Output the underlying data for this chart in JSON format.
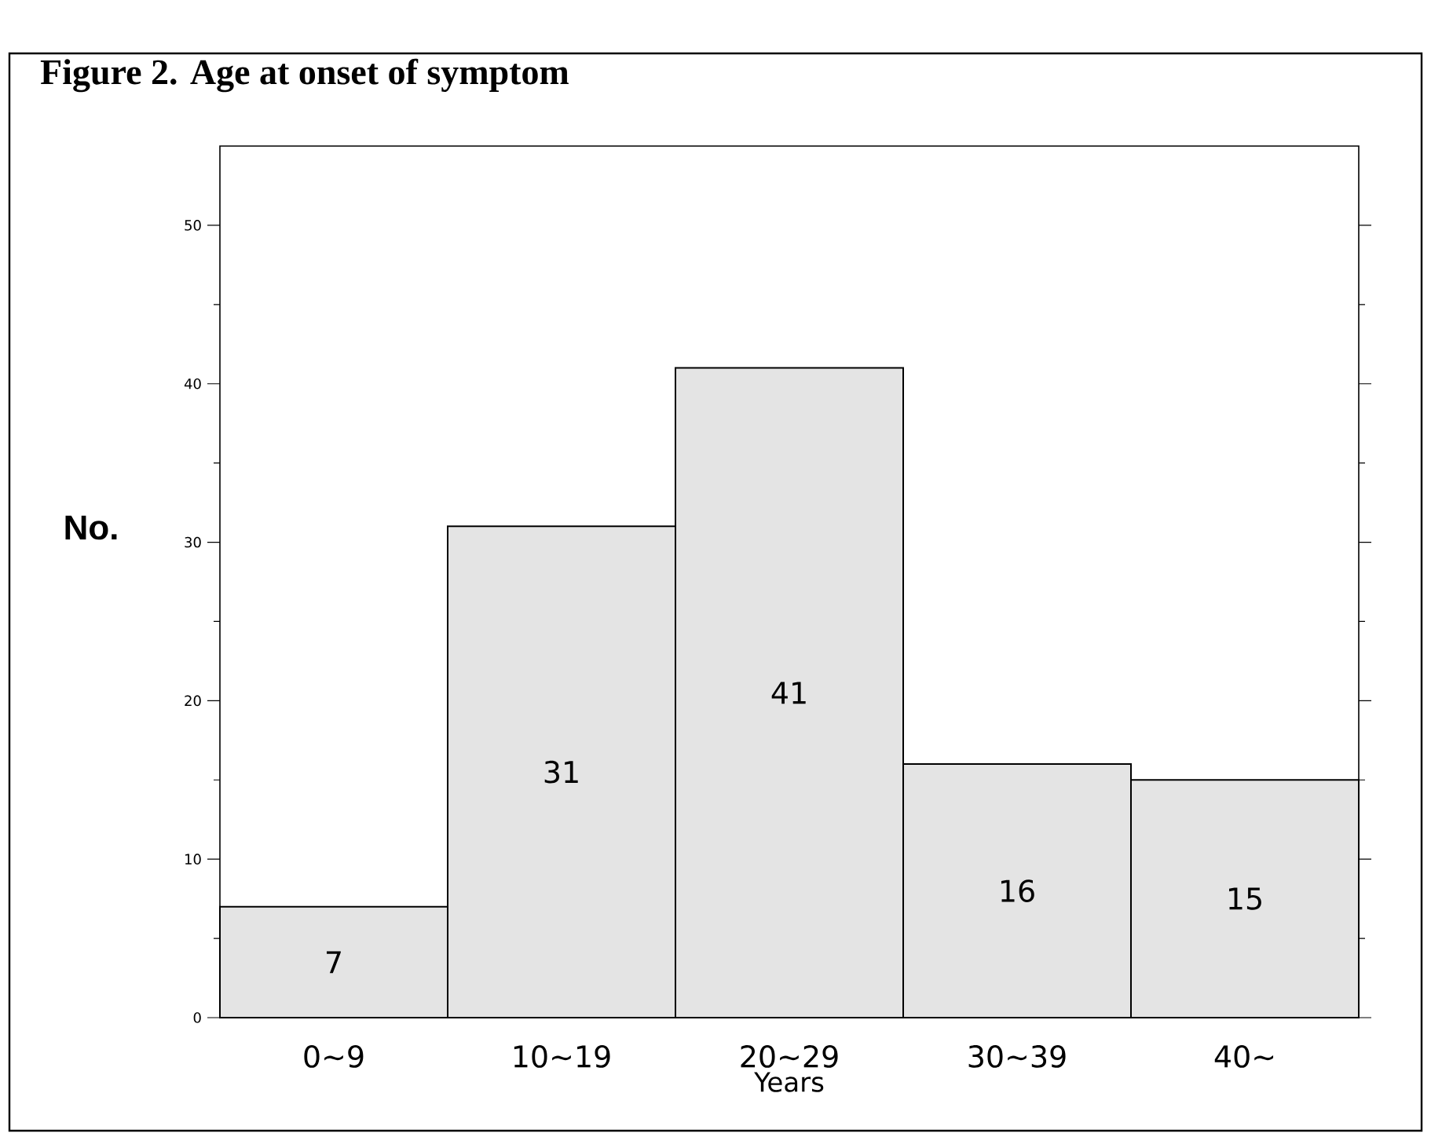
{
  "chart_data": {
    "type": "bar",
    "title": "Figure 2.    Age at onset of symptom",
    "xlabel": "Years",
    "ylabel": "No.",
    "categories": [
      "0~9",
      "10~19",
      "20~29",
      "30~39",
      "40~"
    ],
    "values": [
      7,
      31,
      41,
      16,
      15
    ],
    "color": "#e4e4e4",
    "ylim": [
      0,
      55
    ],
    "yticks": [
      0,
      {
        "value": 5,
        "label": null
      },
      10,
      {
        "value": 15,
        "label": null
      },
      20,
      {
        "value": 25,
        "label": null
      },
      30,
      {
        "value": 35,
        "label": null
      },
      40,
      {
        "value": 45,
        "label": null
      },
      50
    ],
    "data_labels": true
  }
}
